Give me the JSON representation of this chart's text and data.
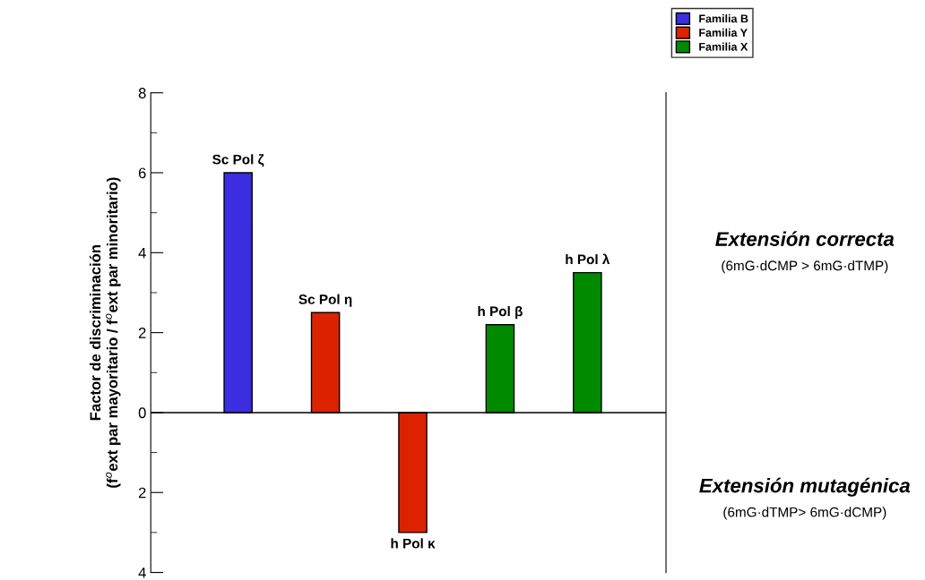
{
  "chart_data": {
    "type": "bar",
    "ylabel": "Factor de discriminación\n(f$^{o}$ext par mayoritario / f$^{o}$ext par minoritario)",
    "categories": [
      "Sc Pol ζ",
      "Sc Pol η",
      "h Pol κ",
      "h Pol β",
      "h Pol λ"
    ],
    "series": [
      {
        "name": "Familia B",
        "color": "#3c2de0",
        "values": [
          6,
          null,
          null,
          null,
          null
        ]
      },
      {
        "name": "Familia Y",
        "color": "#dd2200",
        "values": [
          null,
          2.5,
          -3,
          null,
          null
        ]
      },
      {
        "name": "Familia X",
        "color": "#008a00",
        "values": [
          null,
          null,
          null,
          2.2,
          3.5
        ]
      }
    ],
    "ylim": [
      -4,
      8
    ],
    "yticks": [
      {
        "value": -4,
        "label": "4"
      },
      {
        "value": -2,
        "label": "2"
      },
      0,
      2,
      4,
      6,
      8
    ],
    "ref_lines": [
      {
        "axis": "y",
        "value": 0,
        "color": "#000000"
      }
    ],
    "annotations": [
      "Extensión correcta",
      "(6mG·dCMP > 6mG·dTMP)",
      "Extensión mutagénica",
      "(6mG·dTMP> 6mG·dCMP)"
    ],
    "tick_labels": "y",
    "grid": false,
    "legend": "top right"
  }
}
